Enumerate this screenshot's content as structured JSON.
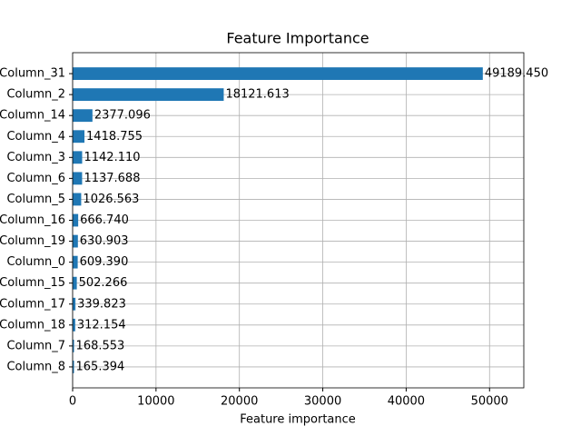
{
  "chart_data": {
    "type": "barh",
    "title": "Feature Importance",
    "x_label": "Feature importance",
    "categories": [
      "Column_31",
      "Column_2",
      "Column_14",
      "Column_4",
      "Column_3",
      "Column_6",
      "Column_5",
      "Column_16",
      "Column_19",
      "Column_0",
      "Column_15",
      "Column_17",
      "Column_18",
      "Column_7",
      "Column_8"
    ],
    "values": [
      49189.45,
      18121.613,
      2377.096,
      1418.755,
      1142.11,
      1137.688,
      1026.563,
      666.74,
      630.903,
      609.39,
      502.266,
      339.823,
      312.154,
      168.553,
      165.394
    ],
    "value_labels": [
      "49189.450",
      "18121.613",
      "2377.096",
      "1418.755",
      "1142.110",
      "1137.688",
      "1026.563",
      "666.740",
      "630.903",
      "609.390",
      "502.266",
      "339.823",
      "312.154",
      "168.553",
      "165.394"
    ],
    "color": "#1f77b4",
    "xlim": [
      0,
      54108
    ],
    "xticks": [
      0,
      10000,
      20000,
      30000,
      40000,
      50000
    ],
    "grid": true
  }
}
